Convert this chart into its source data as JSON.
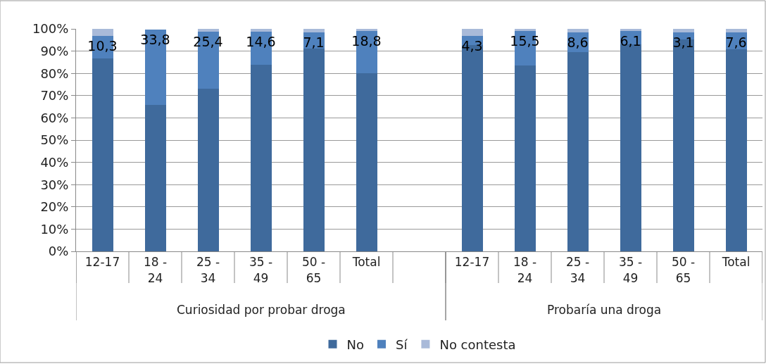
{
  "chart_data": {
    "type": "bar",
    "stacked": true,
    "categories": [
      "12-17",
      "18 - 24",
      "25 - 34",
      "35 - 49",
      "50 - 65",
      "Total",
      null,
      "12-17",
      "18 - 24",
      "25 - 34",
      "35 - 49",
      "50 - 65",
      "Total"
    ],
    "series": [
      {
        "name": "No",
        "color": "#3f6a9c",
        "values": [
          86.6,
          65.9,
          73.2,
          84.0,
          91.2,
          80.1,
          null,
          92.6,
          83.4,
          89.7,
          92.9,
          95.3,
          90.8
        ]
      },
      {
        "name": "Sí",
        "color": "#4f81bd",
        "values": [
          10.3,
          33.8,
          25.4,
          14.6,
          7.1,
          18.8,
          null,
          4.3,
          15.5,
          8.6,
          6.1,
          3.1,
          7.6
        ],
        "value_labels": [
          "10,3",
          "33,8",
          "25,4",
          "14,6",
          "7,1",
          "18,8",
          null,
          "4,3",
          "15,5",
          "8,6",
          "6,1",
          "3,1",
          "7,6"
        ]
      },
      {
        "name": "No contesta",
        "color": "#a9bad9",
        "values": [
          3.1,
          null,
          1.4,
          1.4,
          1.7,
          1.1,
          null,
          3.1,
          1.1,
          1.7,
          1.0,
          1.6,
          1.6
        ]
      }
    ],
    "ylim": [
      0,
      100
    ],
    "yticks": [
      {
        "value": 0,
        "label": "0%"
      },
      {
        "value": 10,
        "label": "10%"
      },
      {
        "value": 20,
        "label": "20%"
      },
      {
        "value": 30,
        "label": "30%"
      },
      {
        "value": 40,
        "label": "40%"
      },
      {
        "value": 50,
        "label": "50%"
      },
      {
        "value": 60,
        "label": "60%"
      },
      {
        "value": 70,
        "label": "70%"
      },
      {
        "value": 80,
        "label": "80%"
      },
      {
        "value": 90,
        "label": "90%"
      },
      {
        "value": 100,
        "label": "100%"
      }
    ],
    "annotations": [
      "Curiosidad por probar droga",
      "Probaría una droga"
    ],
    "grid": "y",
    "legend": "bottom"
  }
}
